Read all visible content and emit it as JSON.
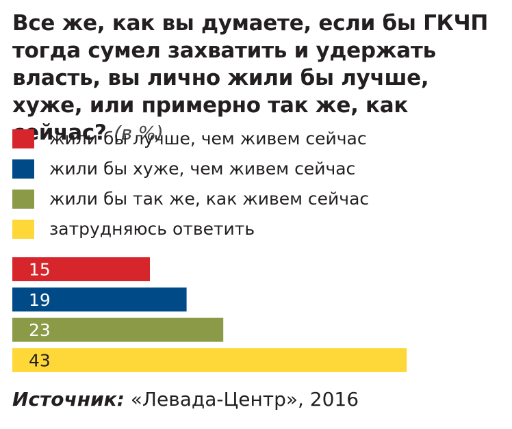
{
  "title": {
    "text": "Все же, как вы думаете, если бы ГКЧП тогда сумел захватить и удержать власть, вы лично жили бы лучше, хуже, или примерно так же, как сейчас?",
    "unit": "(в %)"
  },
  "colors": {
    "red": "#d7262b",
    "blue": "#004b87",
    "green": "#8a9a47",
    "yellow": "#fed739"
  },
  "chart_data": {
    "type": "bar",
    "orientation": "horizontal",
    "categories": [
      "жили бы лучше, чем живем сейчас",
      "жили бы хуже, чем живем сейчас",
      "жили бы так же, как живем сейчас",
      "затрудняюсь ответить"
    ],
    "values": [
      15,
      19,
      23,
      43
    ],
    "colors": [
      "#d7262b",
      "#004b87",
      "#8a9a47",
      "#fed739"
    ],
    "legend": "top",
    "grid": false
  },
  "source": {
    "label": "Источник:",
    "text": "«Левада-Центр», 2016"
  }
}
